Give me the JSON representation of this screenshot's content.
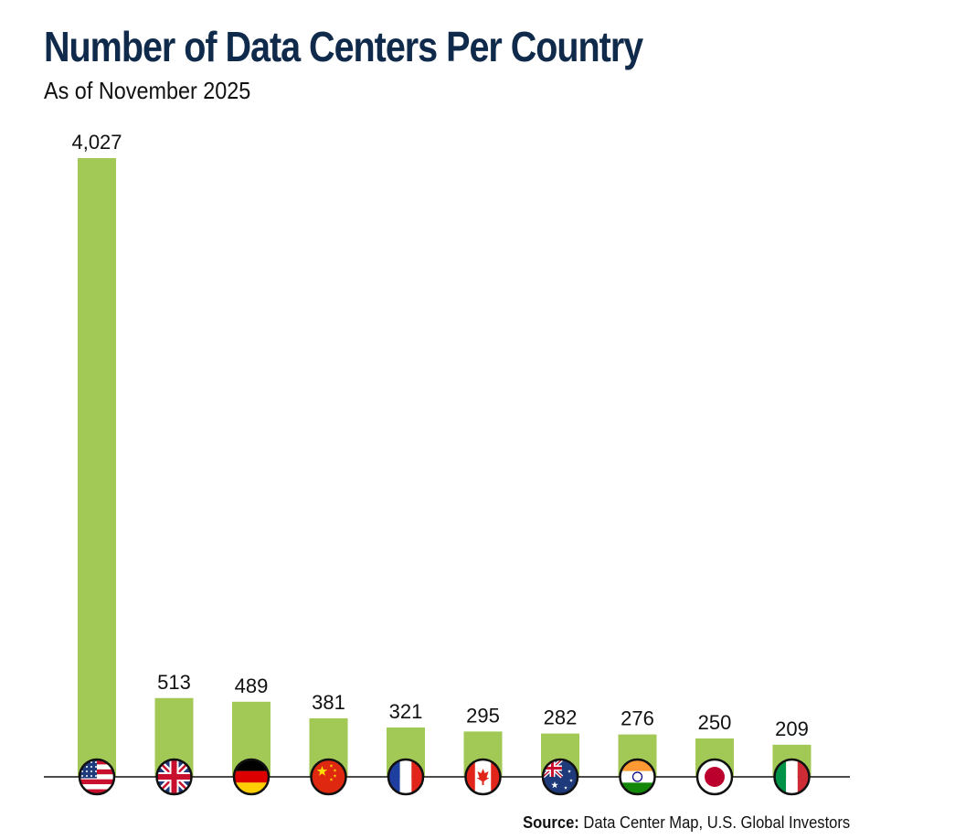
{
  "title": "Number of Data Centers Per Country",
  "subtitle": "As of November 2025",
  "source": {
    "label": "Source:",
    "text": "Data Center Map, U.S. Global Investors"
  },
  "colors": {
    "bar": "#a2c955",
    "title": "#0f2a4a",
    "axis": "#111111"
  },
  "chart_data": {
    "type": "bar",
    "categories": [
      "United States",
      "United Kingdom",
      "Germany",
      "China",
      "France",
      "Canada",
      "Australia",
      "India",
      "Japan",
      "Italy"
    ],
    "category_icons": [
      "us-flag-icon",
      "uk-flag-icon",
      "germany-flag-icon",
      "china-flag-icon",
      "france-flag-icon",
      "canada-flag-icon",
      "australia-flag-icon",
      "india-flag-icon",
      "japan-flag-icon",
      "italy-flag-icon"
    ],
    "values": [
      4027,
      513,
      489,
      381,
      321,
      295,
      282,
      276,
      250,
      209
    ],
    "value_labels": [
      "4,027",
      "513",
      "489",
      "381",
      "321",
      "295",
      "282",
      "276",
      "250",
      "209"
    ],
    "title": "Number of Data Centers Per Country",
    "subtitle": "As of November 2025",
    "ylim": [
      0,
      4027
    ],
    "grid": false,
    "legend": "none"
  }
}
